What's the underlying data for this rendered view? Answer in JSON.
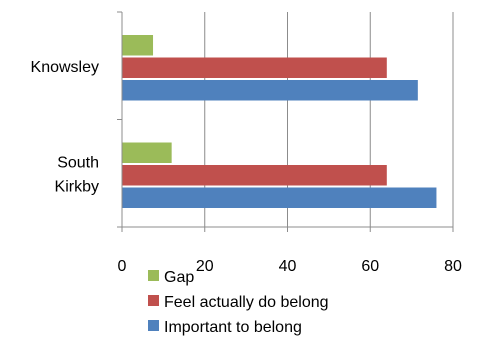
{
  "chart_data": {
    "type": "bar",
    "orientation": "horizontal",
    "categories": [
      "Knowsley",
      "South Kirkby"
    ],
    "category_lines": [
      [
        "Knowsley"
      ],
      [
        "South",
        "Kirkby"
      ]
    ],
    "series": [
      {
        "name": "Gap",
        "values": [
          7.5,
          12
        ],
        "color": "#9BBB59"
      },
      {
        "name": "Feel actually do belong",
        "values": [
          64,
          64
        ],
        "color": "#C0504D"
      },
      {
        "name": "Important to belong",
        "values": [
          71.5,
          76
        ],
        "color": "#4F81BD"
      }
    ],
    "xlim": [
      0,
      80
    ],
    "x_ticks": [
      0,
      20,
      40,
      60,
      80
    ],
    "grid": true,
    "legend_position": "bottom"
  }
}
